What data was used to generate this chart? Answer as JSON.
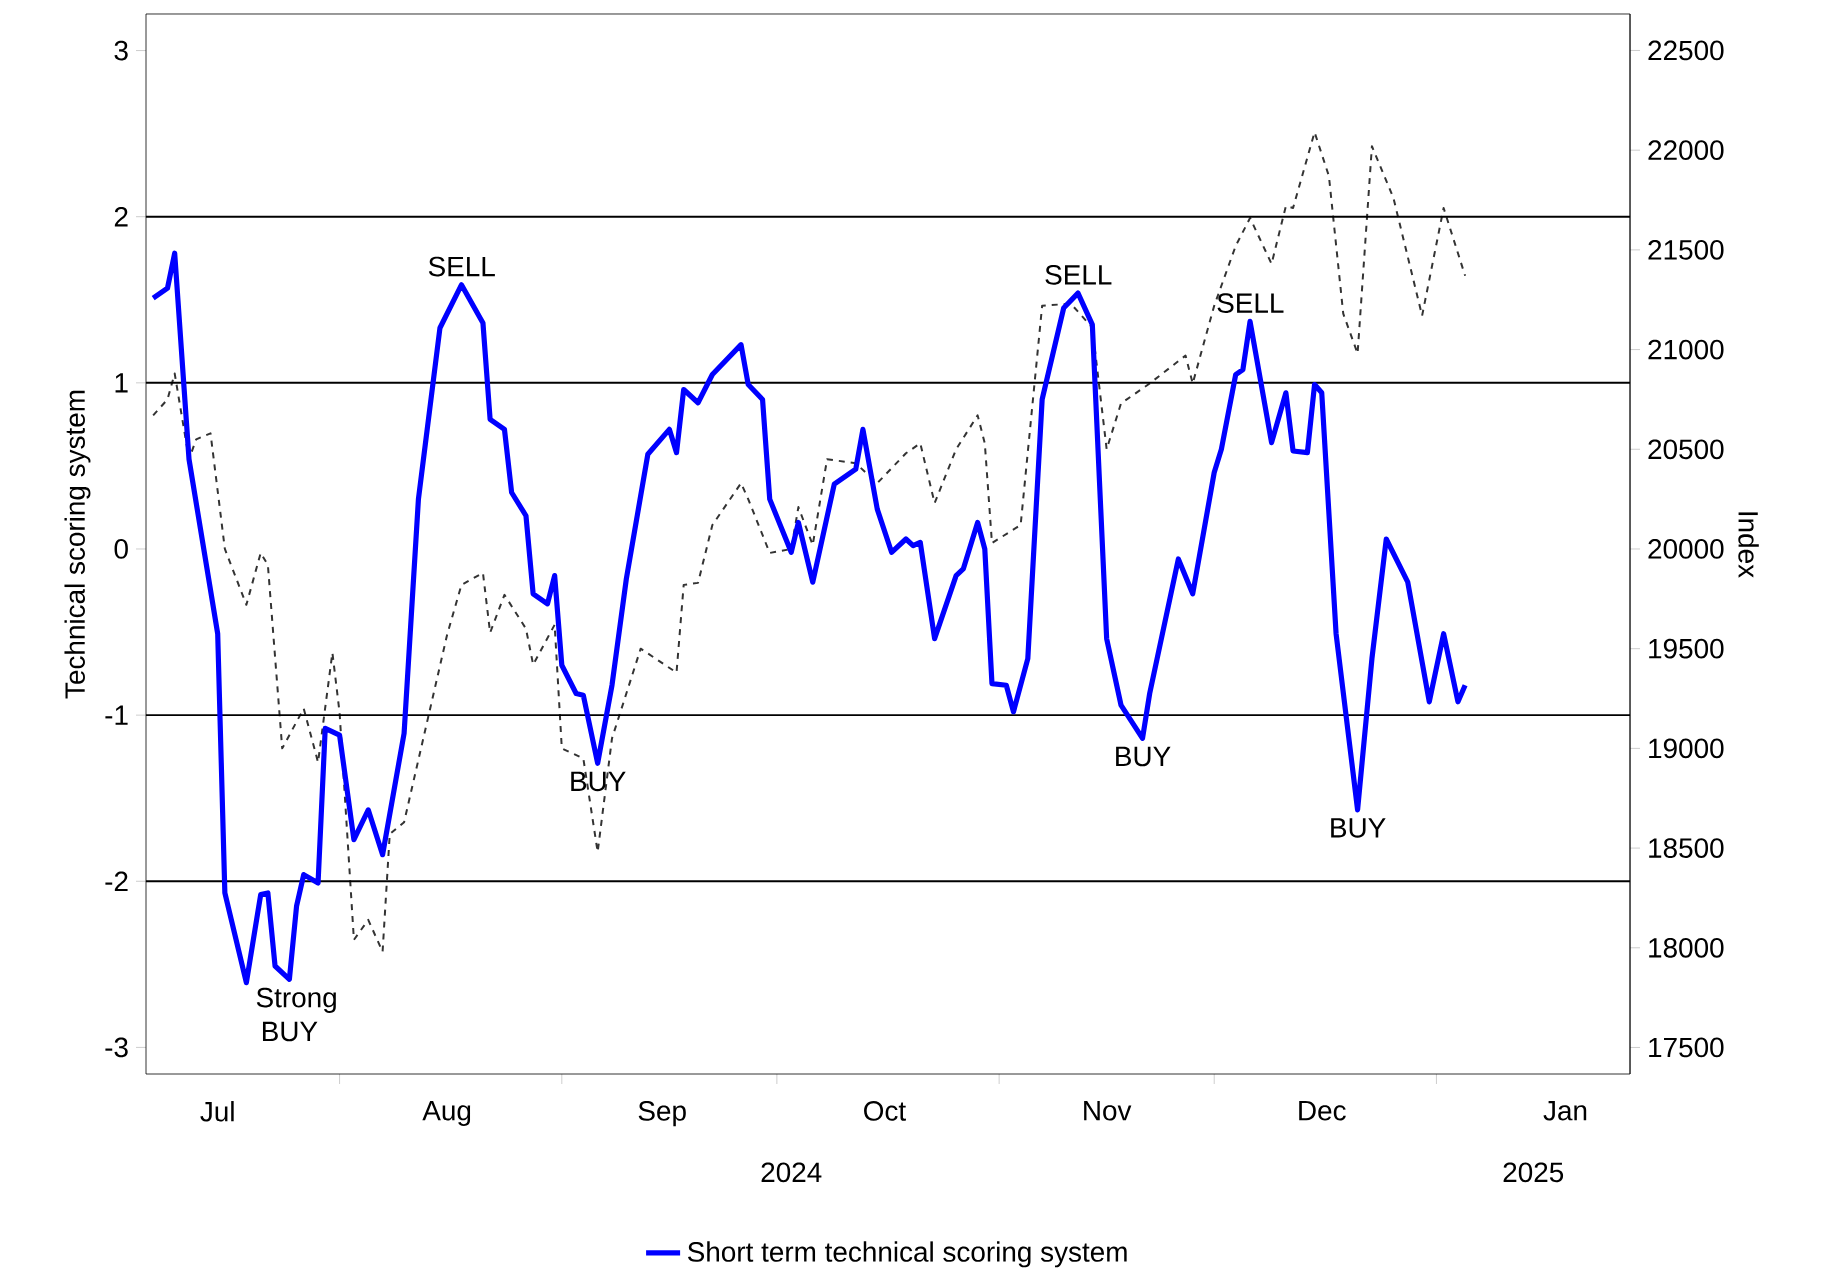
{
  "chart_data": {
    "type": "line",
    "ylabel": "Technical scoring system",
    "y2label": "Index",
    "xlim": [
      "2024-07-05",
      "2025-01-28"
    ],
    "xticks": [
      {
        "value": "2024-08-01",
        "label": null
      },
      {
        "value": "2024-09-01",
        "label": null
      },
      {
        "value": "2024-10-01",
        "label": null
      },
      {
        "value": "2024-11-01",
        "label": null
      },
      {
        "value": "2024-12-01",
        "label": null
      },
      {
        "value": "2025-01-01",
        "label": null
      },
      {
        "value": "2024-07-15",
        "label": "Jul"
      },
      {
        "value": "2024-08-16",
        "label": "Aug"
      },
      {
        "value": "2024-09-15",
        "label": "Sep"
      },
      {
        "value": "2024-10-16",
        "label": "Oct"
      },
      {
        "value": "2024-11-16",
        "label": "Nov"
      },
      {
        "value": "2024-12-16",
        "label": "Dec"
      },
      {
        "value": "2025-01-19",
        "label": "Jan"
      }
    ],
    "ylim": [
      -3.16,
      3.22
    ],
    "yticks": [
      -3,
      -2,
      -1,
      0,
      1,
      2,
      3
    ],
    "y2lim": [
      17367,
      22683
    ],
    "y2ticks": [
      17500,
      18000,
      18500,
      19000,
      19500,
      20000,
      20500,
      21000,
      21500,
      22000,
      22500
    ],
    "ref_lines": [
      {
        "axis": "y",
        "value": 2,
        "color": "#000000"
      },
      {
        "axis": "y",
        "value": 1,
        "color": "#000000"
      },
      {
        "axis": "y",
        "value": -1,
        "color": "#000000"
      },
      {
        "axis": "y",
        "value": -2,
        "color": "#000000"
      }
    ],
    "legend": "bottom",
    "series": [
      {
        "color": "#333333",
        "line_style": "dashed",
        "axis": "y2",
        "x": [
          "2024-07-06",
          "2024-07-08",
          "2024-07-09",
          "2024-07-11",
          "2024-07-12",
          "2024-07-14",
          "2024-07-16",
          "2024-07-19",
          "2024-07-21",
          "2024-07-22",
          "2024-07-24",
          "2024-07-27",
          "2024-07-29",
          "2024-07-31",
          "2024-08-01",
          "2024-08-03",
          "2024-08-05",
          "2024-08-07",
          "2024-08-08",
          "2024-08-10",
          "2024-08-13",
          "2024-08-16",
          "2024-08-18",
          "2024-08-21",
          "2024-08-22",
          "2024-08-24",
          "2024-08-27",
          "2024-08-28",
          "2024-08-31",
          "2024-09-01",
          "2024-09-04",
          "2024-09-06",
          "2024-09-08",
          "2024-09-12",
          "2024-09-17",
          "2024-09-18",
          "2024-09-20",
          "2024-09-22",
          "2024-09-26",
          "2024-09-27",
          "2024-09-30",
          "2024-10-03",
          "2024-10-04",
          "2024-10-06",
          "2024-10-08",
          "2024-10-12",
          "2024-10-15",
          "2024-10-19",
          "2024-10-21",
          "2024-10-23",
          "2024-10-26",
          "2024-10-29",
          "2024-10-30",
          "2024-10-31",
          "2024-11-04",
          "2024-11-07",
          "2024-11-11",
          "2024-11-14",
          "2024-11-16",
          "2024-11-18",
          "2024-11-22",
          "2024-11-27",
          "2024-11-28",
          "2024-12-01",
          "2024-12-04",
          "2024-12-06",
          "2024-12-09",
          "2024-12-11",
          "2024-12-12",
          "2024-12-15",
          "2024-12-17",
          "2024-12-19",
          "2024-12-21",
          "2024-12-23",
          "2024-12-26",
          "2024-12-30",
          "2025-01-02",
          "2025-01-05"
        ],
        "values": [
          20670,
          20750,
          20880,
          20450,
          20550,
          20580,
          20000,
          19720,
          19980,
          19920,
          19000,
          19200,
          18930,
          19480,
          19180,
          18040,
          18140,
          17980,
          18570,
          18630,
          19100,
          19570,
          19820,
          19880,
          19580,
          19770,
          19600,
          19420,
          19620,
          19000,
          18950,
          18480,
          19050,
          19500,
          19380,
          19820,
          19830,
          20120,
          20330,
          20250,
          19980,
          20000,
          20210,
          20020,
          20450,
          20430,
          20330,
          20480,
          20530,
          20230,
          20500,
          20670,
          20530,
          20030,
          20120,
          21220,
          21230,
          21110,
          20500,
          20730,
          20830,
          20970,
          20830,
          21220,
          21520,
          21660,
          21430,
          21720,
          21710,
          22090,
          21870,
          21180,
          20980,
          22020,
          21760,
          21170,
          21710,
          21370
        ]
      },
      {
        "name": "Short term technical scoring system",
        "color": "#0000ff",
        "line_style": "solid",
        "x": [
          "2024-07-06",
          "2024-07-08",
          "2024-07-09",
          "2024-07-11",
          "2024-07-15",
          "2024-07-16",
          "2024-07-19",
          "2024-07-21",
          "2024-07-22",
          "2024-07-23",
          "2024-07-25",
          "2024-07-26",
          "2024-07-27",
          "2024-07-29",
          "2024-07-30",
          "2024-08-01",
          "2024-08-03",
          "2024-08-05",
          "2024-08-07",
          "2024-08-10",
          "2024-08-12",
          "2024-08-15",
          "2024-08-18",
          "2024-08-21",
          "2024-08-22",
          "2024-08-24",
          "2024-08-25",
          "2024-08-27",
          "2024-08-28",
          "2024-08-30",
          "2024-08-31",
          "2024-09-01",
          "2024-09-03",
          "2024-09-04",
          "2024-09-06",
          "2024-09-08",
          "2024-09-10",
          "2024-09-13",
          "2024-09-16",
          "2024-09-17",
          "2024-09-18",
          "2024-09-20",
          "2024-09-22",
          "2024-09-26",
          "2024-09-27",
          "2024-09-29",
          "2024-09-30",
          "2024-10-03",
          "2024-10-04",
          "2024-10-06",
          "2024-10-09",
          "2024-10-12",
          "2024-10-13",
          "2024-10-15",
          "2024-10-17",
          "2024-10-19",
          "2024-10-20",
          "2024-10-21",
          "2024-10-23",
          "2024-10-26",
          "2024-10-27",
          "2024-10-29",
          "2024-10-30",
          "2024-10-31",
          "2024-11-02",
          "2024-11-03",
          "2024-11-05",
          "2024-11-07",
          "2024-11-10",
          "2024-11-12",
          "2024-11-14",
          "2024-11-16",
          "2024-11-18",
          "2024-11-21",
          "2024-11-22",
          "2024-11-26",
          "2024-11-28",
          "2024-12-01",
          "2024-12-02",
          "2024-12-04",
          "2024-12-05",
          "2024-12-06",
          "2024-12-09",
          "2024-12-11",
          "2024-12-12",
          "2024-12-14",
          "2024-12-15",
          "2024-12-16",
          "2024-12-18",
          "2024-12-21",
          "2024-12-23",
          "2024-12-25",
          "2024-12-28",
          "2024-12-31",
          "2025-01-02",
          "2025-01-04",
          "2025-01-05"
        ],
        "values": [
          1.51,
          1.57,
          1.78,
          0.54,
          -0.51,
          -2.07,
          -2.61,
          -2.08,
          -2.07,
          -2.51,
          -2.59,
          -2.15,
          -1.96,
          -2.01,
          -1.08,
          -1.12,
          -1.75,
          -1.57,
          -1.84,
          -1.11,
          0.3,
          1.33,
          1.59,
          1.36,
          0.78,
          0.72,
          0.34,
          0.2,
          -0.27,
          -0.33,
          -0.16,
          -0.7,
          -0.87,
          -0.88,
          -1.29,
          -0.82,
          -0.18,
          0.57,
          0.72,
          0.58,
          0.96,
          0.88,
          1.05,
          1.23,
          0.99,
          0.9,
          0.3,
          -0.02,
          0.16,
          -0.2,
          0.39,
          0.48,
          0.72,
          0.24,
          -0.02,
          0.06,
          0.02,
          0.04,
          -0.54,
          -0.16,
          -0.12,
          0.16,
          0.0,
          -0.81,
          -0.82,
          -0.98,
          -0.66,
          0.9,
          1.45,
          1.54,
          1.35,
          -0.54,
          -0.94,
          -1.14,
          -0.87,
          -0.06,
          -0.27,
          0.46,
          0.6,
          1.05,
          1.08,
          1.37,
          0.64,
          0.94,
          0.59,
          0.58,
          0.99,
          0.94,
          -0.51,
          -1.57,
          -0.66,
          0.06,
          -0.2,
          -0.92,
          -0.51,
          -0.92,
          -0.82
        ]
      }
    ],
    "annotations": [
      {
        "text": "Strong BUY",
        "x": "2024-07-25",
        "y": -2.59
      },
      {
        "text": "SELL",
        "x": "2024-08-18",
        "y": 1.59
      },
      {
        "text": "BUY",
        "x": "2024-09-06",
        "y": -1.29
      },
      {
        "text": "SELL",
        "x": "2024-11-12",
        "y": 1.54
      },
      {
        "text": "BUY",
        "x": "2024-11-21",
        "y": -1.14
      },
      {
        "text": "SELL",
        "x": "2024-12-06",
        "y": 1.37
      },
      {
        "text": "BUY",
        "x": "2024-12-21",
        "y": -1.57
      },
      "2024",
      "2025"
    ]
  }
}
